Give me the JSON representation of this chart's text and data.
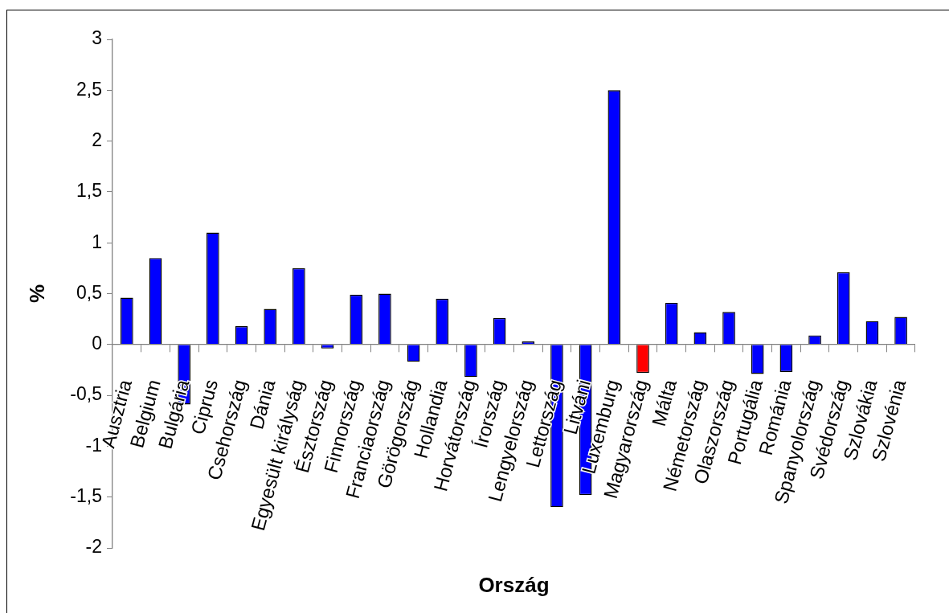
{
  "chart_data": {
    "type": "bar",
    "xlabel": "Ország",
    "ylabel": "%",
    "categories": [
      "Ausztria",
      "Belgium",
      "Bulgária",
      "Ciprus",
      "Csehország",
      "Dánia",
      "Egyesült királyság",
      "Észtország",
      "Finnország",
      "Franciaország",
      "Görögország",
      "Hollandia",
      "Horvátország",
      "Írország",
      "Lengyelország",
      "Lettország",
      "Litváni",
      "Luxemburg",
      "Magyarország",
      "Málta",
      "Németország",
      "Olaszország",
      "Portugália",
      "Románia",
      "Spanyolország",
      "Svédország",
      "Szlovákia",
      "Szlovénia"
    ],
    "values": [
      0.46,
      0.85,
      -0.59,
      1.1,
      0.18,
      0.35,
      0.75,
      -0.04,
      0.49,
      0.5,
      -0.17,
      0.45,
      -0.32,
      0.26,
      0.03,
      -1.6,
      -1.48,
      2.5,
      -0.28,
      0.41,
      0.12,
      0.32,
      -0.29,
      -0.27,
      0.09,
      0.71,
      0.23,
      0.27
    ],
    "colors": [
      "#0000ff",
      "#0000ff",
      "#0000ff",
      "#0000ff",
      "#0000ff",
      "#0000ff",
      "#0000ff",
      "#0000ff",
      "#0000ff",
      "#0000ff",
      "#0000ff",
      "#0000ff",
      "#0000ff",
      "#0000ff",
      "#0000ff",
      "#0000ff",
      "#0000ff",
      "#0000ff",
      "#ff0000",
      "#0000ff",
      "#0000ff",
      "#0000ff",
      "#0000ff",
      "#0000ff",
      "#0000ff",
      "#0000ff",
      "#0000ff",
      "#0000ff"
    ],
    "ylim": [
      -2,
      3
    ],
    "yticks": [
      -2,
      {
        "value": -1.5,
        "label": "-1,5"
      },
      -1,
      {
        "value": -0.5,
        "label": "-0,5"
      },
      0,
      {
        "value": 0.5,
        "label": "0,5"
      },
      1,
      {
        "value": 1.5,
        "label": "1,5"
      },
      2,
      {
        "value": 2.5,
        "label": "2,5"
      },
      3
    ]
  }
}
